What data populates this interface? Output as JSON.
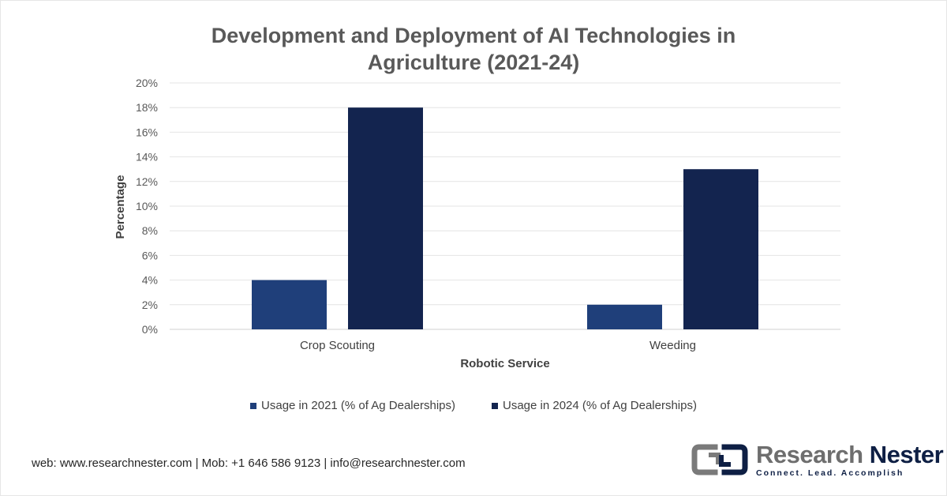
{
  "chart_data": {
    "type": "bar",
    "title": "Development and Deployment of AI Technologies in Agriculture (2021-24)",
    "title_line1": "Development and Deployment of AI Technologies in",
    "title_line2": "Agriculture (2021-24)",
    "xlabel": "Robotic Service",
    "ylabel": "Percentage",
    "categories": [
      "Crop Scouting",
      "Weeding"
    ],
    "series": [
      {
        "name": "Usage in 2021 (% of Ag Dealerships)",
        "values": [
          4,
          2
        ],
        "color": "#1f3f7a"
      },
      {
        "name": "Usage in 2024 (% of Ag Dealerships)",
        "values": [
          18,
          13
        ],
        "color": "#13244f"
      }
    ],
    "ylim": [
      0,
      20
    ],
    "yticks": [
      "0%",
      "2%",
      "4%",
      "6%",
      "8%",
      "10%",
      "12%",
      "14%",
      "16%",
      "18%",
      "20%"
    ],
    "grid": true,
    "legend_position": "bottom"
  },
  "footer": {
    "contact": "web: www.researchnester.com | Mob: +1 646 586 9123 | info@researchnester.com"
  },
  "brand": {
    "name_part1": "Research",
    "name_part2": "Nester",
    "tagline": "Connect. Lead. Accomplish",
    "logo_icon": "research-nester-logo-icon"
  }
}
